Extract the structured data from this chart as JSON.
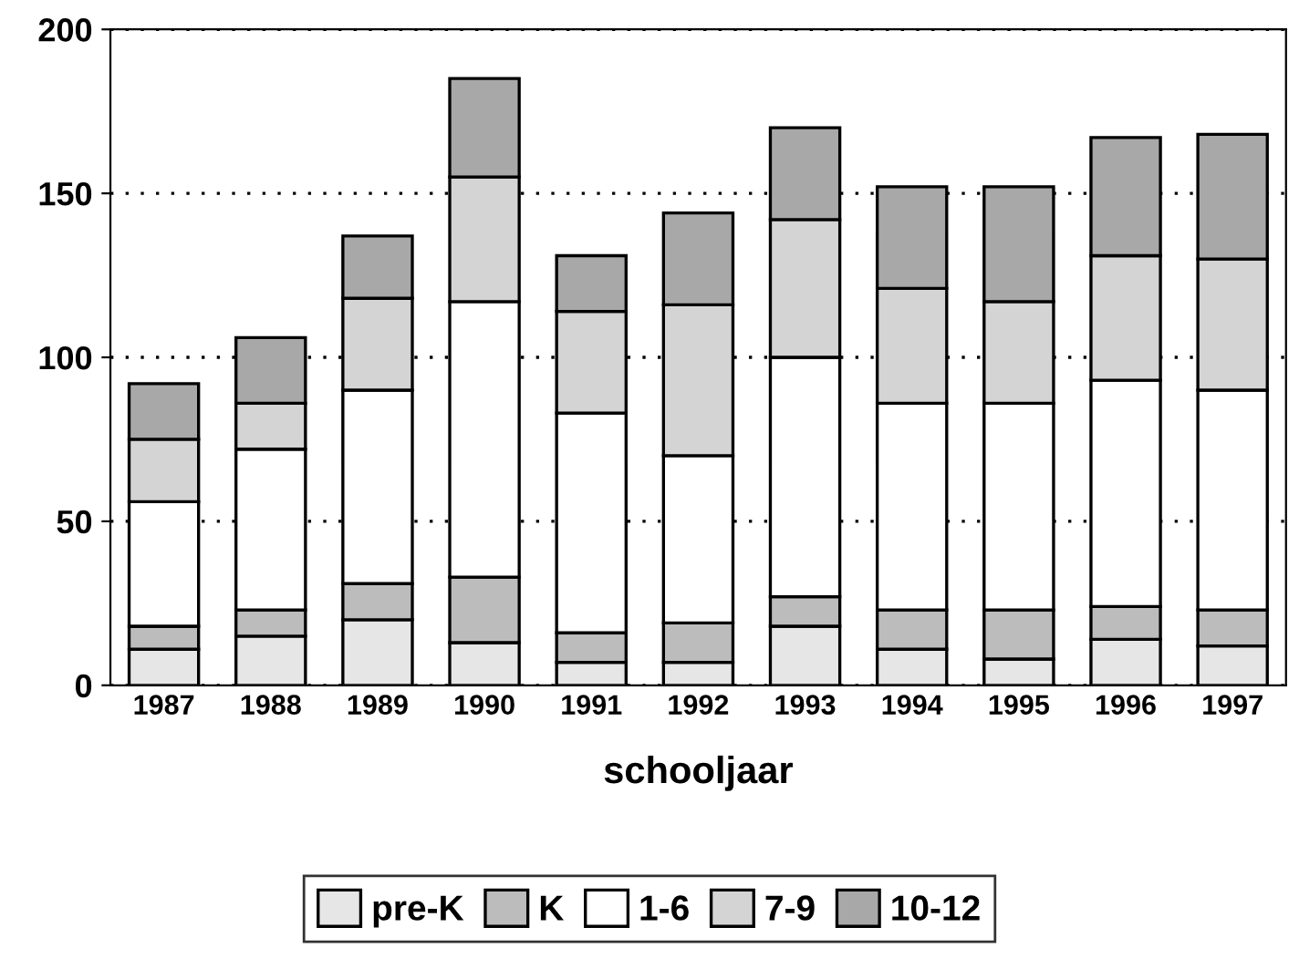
{
  "chart_data": {
    "type": "bar",
    "stacked": true,
    "xlabel": "schooljaar",
    "categories": [
      "1987",
      "1988",
      "1989",
      "1990",
      "1991",
      "1992",
      "1993",
      "1994",
      "1995",
      "1996",
      "1997"
    ],
    "series": [
      {
        "name": "pre-K",
        "color": "#e6e6e6",
        "values": [
          11,
          15,
          20,
          13,
          7,
          7,
          18,
          11,
          8,
          14,
          12
        ]
      },
      {
        "name": "K",
        "color": "#bcbcbc",
        "values": [
          7,
          8,
          11,
          20,
          9,
          12,
          9,
          12,
          15,
          10,
          11
        ]
      },
      {
        "name": "1-6",
        "color": "#ffffff",
        "values": [
          38,
          49,
          59,
          84,
          67,
          51,
          73,
          63,
          63,
          69,
          67
        ]
      },
      {
        "name": "7-9",
        "color": "#d4d4d4",
        "values": [
          19,
          14,
          28,
          38,
          31,
          46,
          42,
          35,
          31,
          38,
          40
        ]
      },
      {
        "name": "10-12",
        "color": "#a8a8a8",
        "values": [
          17,
          20,
          19,
          30,
          17,
          28,
          28,
          31,
          35,
          36,
          38
        ]
      }
    ],
    "ylim": [
      0,
      200
    ],
    "yticks": [
      0,
      50,
      100,
      150,
      200
    ],
    "grid": "y",
    "legend": "bottom"
  }
}
